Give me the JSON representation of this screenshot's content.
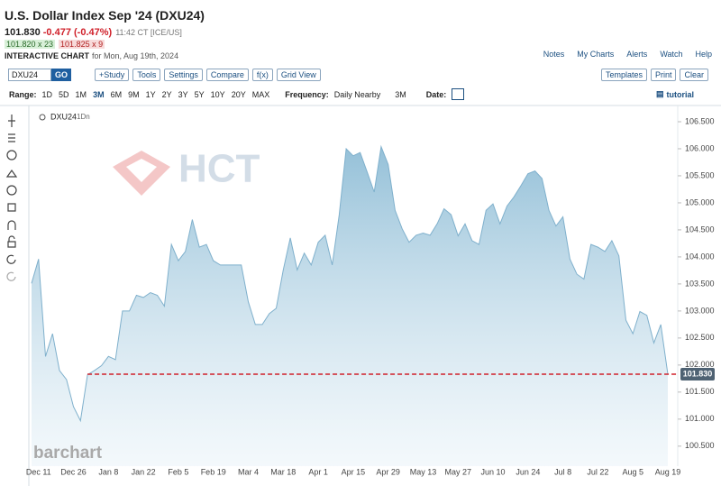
{
  "header": {
    "title": "U.S. Dollar Index Sep '24 (DXU24)",
    "last": "101.830",
    "change": "-0.477 (-0.47%)",
    "time": "11:42 CT [ICE/US]",
    "bid": "101.820 x 23",
    "ask": "101.825 x 9",
    "chart_label": "INTERACTIVE CHART",
    "date_text": "for Mon, Aug 19th, 2024"
  },
  "links": [
    "Notes",
    "My Charts",
    "Alerts",
    "Watch",
    "Help"
  ],
  "toolbar": {
    "symbol": "DXU24",
    "go": "GO",
    "buttons": [
      "+Study",
      "Tools",
      "Settings",
      "Compare",
      "f(x)",
      "Grid View"
    ],
    "right_buttons": [
      "Templates",
      "Print",
      "Clear"
    ]
  },
  "range_bar": {
    "range_label": "Range:",
    "ranges": [
      "1D",
      "5D",
      "1M",
      "3M",
      "6M",
      "9M",
      "1Y",
      "2Y",
      "3Y",
      "5Y",
      "10Y",
      "20Y",
      "MAX"
    ],
    "selected_range": 3,
    "frequency_label": "Frequency:",
    "frequency": "Daily Nearby",
    "period": "3M",
    "date_label": "Date:",
    "tutorial": "tutorial"
  },
  "chart_data": {
    "type": "area",
    "symbol": "DXU24",
    "interval": "1Dn",
    "watermark": "barchart",
    "logo": "HCT",
    "color": "#7fb0cc",
    "categories": [
      null,
      "Dec 11",
      null,
      null,
      null,
      null,
      "Dec 26",
      null,
      null,
      null,
      null,
      "Jan 8",
      null,
      null,
      null,
      null,
      "Jan 22",
      null,
      null,
      null,
      null,
      "Feb 5",
      null,
      null,
      null,
      null,
      "Feb 19",
      null,
      null,
      null,
      null,
      "Mar 4",
      null,
      null,
      null,
      null,
      "Mar 18",
      null,
      null,
      null,
      null,
      "Apr 1",
      null,
      null,
      null,
      null,
      "Apr 15",
      null,
      null,
      null,
      null,
      "Apr 29",
      null,
      null,
      null,
      null,
      "May 13",
      null,
      null,
      null,
      null,
      "May 27",
      null,
      null,
      null,
      null,
      "Jun 10",
      null,
      null,
      null,
      null,
      "Jun 24",
      null,
      null,
      null,
      null,
      "Jul 8",
      null,
      null,
      null,
      null,
      "Jul 22",
      null,
      null,
      null,
      null,
      "Aug 5",
      null,
      null,
      null,
      null,
      "Aug 19"
    ],
    "values": [
      103.51,
      103.96,
      102.16,
      102.58,
      101.9,
      101.73,
      101.23,
      100.97,
      101.82,
      101.9,
      101.99,
      102.16,
      102.1,
      103.0,
      103.0,
      103.29,
      103.25,
      103.34,
      103.29,
      103.09,
      104.23,
      103.93,
      104.1,
      104.69,
      104.18,
      104.23,
      103.93,
      103.85,
      103.85,
      103.85,
      103.85,
      103.17,
      102.75,
      102.75,
      102.95,
      103.05,
      103.76,
      104.35,
      103.76,
      104.07,
      103.85,
      104.27,
      104.4,
      103.85,
      104.78,
      106.0,
      105.87,
      105.93,
      105.57,
      105.2,
      106.04,
      105.71,
      104.86,
      104.52,
      104.27,
      104.4,
      104.44,
      104.4,
      104.61,
      104.89,
      104.78,
      104.39,
      104.61,
      104.3,
      104.23,
      104.86,
      104.98,
      104.61,
      104.94,
      105.11,
      105.32,
      105.54,
      105.59,
      105.45,
      104.86,
      104.57,
      104.74,
      103.96,
      103.68,
      103.59,
      104.23,
      104.18,
      104.1,
      104.3,
      104.02,
      102.83,
      102.58,
      102.99,
      102.92,
      102.41,
      102.75,
      101.83
    ],
    "ylim": [
      100.13,
      106.8
    ],
    "yticks": [
      {
        "value": 100.5,
        "label": "100.500"
      },
      {
        "value": 101,
        "label": "101.000"
      },
      {
        "value": 101.5,
        "label": "101.500"
      },
      {
        "value": 102,
        "label": "102.000"
      },
      {
        "value": 102.5,
        "label": "102.500"
      },
      {
        "value": 103,
        "label": "103.000"
      },
      {
        "value": 103.5,
        "label": "103.500"
      },
      {
        "value": 104,
        "label": "104.000"
      },
      {
        "value": 104.5,
        "label": "104.500"
      },
      {
        "value": 105,
        "label": "105.000"
      },
      {
        "value": 105.5,
        "label": "105.500"
      },
      {
        "value": 106,
        "label": "106.000"
      },
      {
        "value": 106.5,
        "label": "106.500"
      }
    ],
    "reference_line": {
      "value": 101.83,
      "label": "101.830",
      "color": "#d0202a"
    }
  }
}
